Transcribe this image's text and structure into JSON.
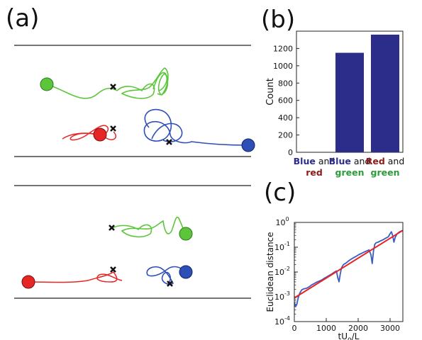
{
  "panel_labels": {
    "a": "(a)",
    "b": "(b)",
    "c": "(c)"
  },
  "colors": {
    "green": "#5cc63a",
    "red": "#e82525",
    "blue": "#2e4fb5",
    "bar": "#2c2d8a",
    "fit_line": "#e82525",
    "data_line": "#3b5bc4",
    "green_text": "#2a9d3a",
    "red_text": "#8e1a1a",
    "blue_text": "#2c2d8a"
  },
  "chart_data": [
    {
      "type": "bar",
      "panel": "b",
      "ylabel": "Count",
      "categories": [
        {
          "parts": [
            {
              "text": "Blue",
              "color": "blue_text",
              "bold": true
            },
            {
              "text": " and",
              "color": "plain"
            }
          ],
          "line2": {
            "text": "red",
            "color": "red_text"
          }
        },
        {
          "parts": [
            {
              "text": "Blue",
              "color": "blue_text",
              "bold": true
            },
            {
              "text": " and",
              "color": "plain"
            }
          ],
          "line2": {
            "text": "green",
            "color": "green_text"
          }
        },
        {
          "parts": [
            {
              "text": "Red",
              "color": "red_text",
              "bold": true
            },
            {
              "text": " and",
              "color": "plain"
            }
          ],
          "line2": {
            "text": "green",
            "color": "green_text"
          }
        }
      ],
      "values": [
        0,
        1150,
        1360
      ],
      "ylim": [
        0,
        1400
      ],
      "yticks": [
        0,
        200,
        400,
        600,
        800,
        1000,
        1200
      ]
    },
    {
      "type": "line",
      "panel": "c",
      "ylabel": "Euclidean distance",
      "xlabel": "tU",
      "xlabel_sub": "0",
      "xlabel_tail": "/L",
      "xlim": [
        0,
        3400
      ],
      "xticks": [
        0,
        1000,
        2000,
        3000
      ],
      "ylog": true,
      "ylim": [
        0.0001,
        1
      ],
      "yticks": [
        {
          "v": 0.0001,
          "exp": "-4"
        },
        {
          "v": 0.001,
          "exp": "-3"
        },
        {
          "v": 0.01,
          "exp": "-2"
        },
        {
          "v": 0.1,
          "exp": "-1"
        },
        {
          "v": 1,
          "exp": "0"
        }
      ],
      "tick_base": "10",
      "series": [
        {
          "style": "data",
          "x": [
            0,
            40,
            80,
            120,
            170,
            230,
            300,
            380,
            460,
            540,
            620,
            700,
            780,
            860,
            940,
            1020,
            1100,
            1180,
            1260,
            1320,
            1360,
            1400,
            1440,
            1480,
            1540,
            1620,
            1700,
            1780,
            1860,
            1940,
            2020,
            2100,
            2180,
            2260,
            2340,
            2400,
            2440,
            2480,
            2520,
            2560,
            2620,
            2700,
            2780,
            2860,
            2940,
            3000,
            3040,
            3080,
            3120,
            3160,
            3220,
            3300,
            3400
          ],
          "y": [
            0.0006,
            0.0004,
            0.0005,
            0.0009,
            0.0014,
            0.0019,
            0.0021,
            0.0022,
            0.0025,
            0.003,
            0.0034,
            0.0039,
            0.0043,
            0.0048,
            0.0056,
            0.0064,
            0.0074,
            0.0085,
            0.01,
            0.011,
            0.006,
            0.004,
            0.0085,
            0.015,
            0.02,
            0.023,
            0.028,
            0.033,
            0.038,
            0.043,
            0.05,
            0.056,
            0.063,
            0.07,
            0.078,
            0.05,
            0.022,
            0.07,
            0.13,
            0.15,
            0.16,
            0.18,
            0.2,
            0.23,
            0.26,
            0.35,
            0.42,
            0.3,
            0.16,
            0.25,
            0.35,
            0.42,
            0.48
          ]
        },
        {
          "style": "fit",
          "x": [
            0,
            3400
          ],
          "y": [
            0.0009,
            0.48
          ]
        }
      ]
    }
  ]
}
